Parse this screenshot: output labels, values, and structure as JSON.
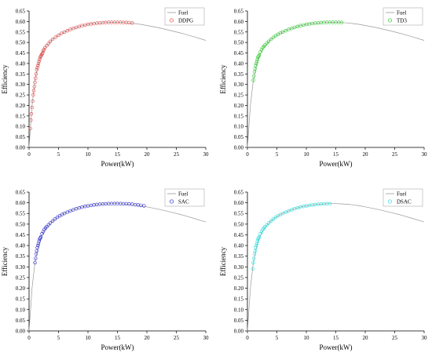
{
  "chart_data": [
    {
      "type": "scatter",
      "xlabel": "Power(kW)",
      "ylabel": "Efficiency",
      "xlim": [
        0,
        30
      ],
      "ylim": [
        0,
        0.65
      ],
      "xticks": [
        "0",
        "5",
        "10",
        "15",
        "20",
        "25",
        "30"
      ],
      "yticks": [
        "0.00",
        "0.05",
        "0.10",
        "0.15",
        "0.20",
        "0.25",
        "0.30",
        "0.35",
        "0.40",
        "0.45",
        "0.50",
        "0.55",
        "0.60",
        "0.65"
      ],
      "legend": [
        "Fuel",
        "DDPG"
      ],
      "legend_position": "top-right",
      "colors": {
        "fuel": "#999999",
        "series": "#e04040"
      },
      "series": [
        {
          "name": "Fuel",
          "kind": "line",
          "x": [
            0,
            0.5,
            1,
            1.5,
            2,
            2.5,
            3,
            4,
            5,
            6,
            7,
            8,
            9,
            10,
            11,
            12,
            13,
            14,
            15,
            16,
            17,
            18,
            19,
            20,
            22,
            24,
            26,
            28,
            30
          ],
          "y": [
            0,
            0.2,
            0.32,
            0.39,
            0.435,
            0.465,
            0.485,
            0.515,
            0.535,
            0.55,
            0.562,
            0.572,
            0.58,
            0.586,
            0.59,
            0.593,
            0.595,
            0.596,
            0.596,
            0.595,
            0.593,
            0.59,
            0.586,
            0.581,
            0.57,
            0.557,
            0.543,
            0.527,
            0.51
          ]
        },
        {
          "name": "DDPG",
          "kind": "scatter",
          "x": [
            0.2,
            0.3,
            0.4,
            0.5,
            0.6,
            0.7,
            0.8,
            0.9,
            1,
            1.1,
            1.2,
            1.3,
            1.4,
            1.5,
            1.6,
            1.7,
            1.8,
            1.9,
            2,
            2.1,
            2.2,
            2.3,
            2.4,
            2.5,
            2.7,
            3,
            3.3,
            3.6,
            4,
            4.5,
            5,
            5.5,
            6,
            6.5,
            7,
            7.5,
            8,
            8.5,
            9,
            9.5,
            10,
            10.5,
            11,
            11.5,
            12,
            12.5,
            13,
            13.5,
            14,
            14.5,
            15,
            15.5,
            16,
            16.5,
            17,
            17.5
          ],
          "y": [
            0.09,
            0.13,
            0.16,
            0.19,
            0.22,
            0.25,
            0.27,
            0.29,
            0.31,
            0.33,
            0.35,
            0.37,
            0.38,
            0.39,
            0.4,
            0.41,
            0.42,
            0.43,
            0.435,
            0.44,
            0.445,
            0.45,
            0.46,
            0.465,
            0.475,
            0.485,
            0.495,
            0.505,
            0.515,
            0.525,
            0.535,
            0.543,
            0.55,
            0.556,
            0.562,
            0.567,
            0.572,
            0.576,
            0.58,
            0.583,
            0.586,
            0.588,
            0.59,
            0.592,
            0.593,
            0.594,
            0.595,
            0.596,
            0.596,
            0.596,
            0.596,
            0.596,
            0.595,
            0.595,
            0.594,
            0.593
          ]
        }
      ]
    },
    {
      "type": "scatter",
      "xlabel": "Power(kW)",
      "ylabel": "Efficiency",
      "xlim": [
        0,
        30
      ],
      "ylim": [
        0,
        0.65
      ],
      "xticks": [
        "0",
        "5",
        "10",
        "15",
        "20",
        "25",
        "30"
      ],
      "yticks": [
        "0.00",
        "0.05",
        "0.10",
        "0.15",
        "0.20",
        "0.25",
        "0.30",
        "0.35",
        "0.40",
        "0.45",
        "0.50",
        "0.55",
        "0.60",
        "0.65"
      ],
      "legend": [
        "Fuel",
        "TD3"
      ],
      "legend_position": "top-right",
      "colors": {
        "fuel": "#999999",
        "series": "#22cc22"
      },
      "series": [
        {
          "name": "Fuel",
          "kind": "line",
          "x": [
            0,
            0.5,
            1,
            1.5,
            2,
            2.5,
            3,
            4,
            5,
            6,
            7,
            8,
            9,
            10,
            11,
            12,
            13,
            14,
            15,
            16,
            17,
            18,
            19,
            20,
            22,
            24,
            26,
            28,
            30
          ],
          "y": [
            0,
            0.2,
            0.32,
            0.39,
            0.435,
            0.465,
            0.485,
            0.515,
            0.535,
            0.55,
            0.562,
            0.572,
            0.58,
            0.586,
            0.59,
            0.593,
            0.595,
            0.596,
            0.596,
            0.595,
            0.593,
            0.59,
            0.586,
            0.581,
            0.57,
            0.557,
            0.543,
            0.527,
            0.51
          ]
        },
        {
          "name": "TD3",
          "kind": "scatter",
          "x": [
            1,
            1.1,
            1.2,
            1.3,
            1.4,
            1.5,
            1.6,
            1.7,
            1.8,
            1.9,
            2,
            2.2,
            2.4,
            2.6,
            2.8,
            3,
            3.3,
            3.6,
            4,
            4.4,
            4.8,
            5.2,
            5.6,
            6,
            6.5,
            7,
            7.5,
            8,
            8.5,
            9,
            9.5,
            10,
            10.5,
            11,
            11.5,
            12,
            12.5,
            13,
            13.5,
            14,
            14.5,
            15,
            15.5,
            16
          ],
          "y": [
            0.32,
            0.34,
            0.36,
            0.375,
            0.39,
            0.4,
            0.41,
            0.42,
            0.43,
            0.435,
            0.44,
            0.455,
            0.465,
            0.475,
            0.482,
            0.488,
            0.497,
            0.505,
            0.515,
            0.524,
            0.532,
            0.539,
            0.545,
            0.55,
            0.556,
            0.562,
            0.567,
            0.572,
            0.576,
            0.58,
            0.583,
            0.586,
            0.588,
            0.59,
            0.592,
            0.593,
            0.594,
            0.595,
            0.596,
            0.596,
            0.596,
            0.596,
            0.596,
            0.595
          ]
        }
      ]
    },
    {
      "type": "scatter",
      "xlabel": "Power(kW)",
      "ylabel": "Efficiency",
      "xlim": [
        0,
        30
      ],
      "ylim": [
        0,
        0.65
      ],
      "xticks": [
        "0",
        "5",
        "10",
        "15",
        "20",
        "25",
        "30"
      ],
      "yticks": [
        "0.00",
        "0.05",
        "0.10",
        "0.15",
        "0.20",
        "0.25",
        "0.30",
        "0.35",
        "0.40",
        "0.45",
        "0.50",
        "0.55",
        "0.60",
        "0.65"
      ],
      "legend": [
        "Fuel",
        "SAC"
      ],
      "legend_position": "top-right",
      "colors": {
        "fuel": "#999999",
        "series": "#2424d0"
      },
      "series": [
        {
          "name": "Fuel",
          "kind": "line",
          "x": [
            0,
            0.5,
            1,
            1.5,
            2,
            2.5,
            3,
            4,
            5,
            6,
            7,
            8,
            9,
            10,
            11,
            12,
            13,
            14,
            15,
            16,
            17,
            18,
            19,
            20,
            22,
            24,
            26,
            28,
            30
          ],
          "y": [
            0,
            0.2,
            0.32,
            0.39,
            0.435,
            0.465,
            0.485,
            0.515,
            0.535,
            0.55,
            0.562,
            0.572,
            0.58,
            0.586,
            0.59,
            0.593,
            0.595,
            0.596,
            0.596,
            0.595,
            0.593,
            0.59,
            0.586,
            0.581,
            0.57,
            0.557,
            0.543,
            0.527,
            0.51
          ]
        },
        {
          "name": "SAC",
          "kind": "scatter",
          "x": [
            1,
            1.1,
            1.2,
            1.3,
            1.4,
            1.5,
            1.6,
            1.7,
            1.8,
            1.9,
            2,
            2.2,
            2.4,
            2.6,
            2.8,
            3,
            3.3,
            3.6,
            4,
            4.4,
            4.8,
            5.2,
            5.6,
            6,
            6.5,
            7,
            7.5,
            8,
            8.5,
            9,
            9.5,
            10,
            10.5,
            11,
            11.5,
            12,
            12.5,
            13,
            13.5,
            14,
            14.5,
            15,
            15.5,
            16,
            16.5,
            17,
            17.5,
            18,
            18.5,
            19,
            19.5
          ],
          "y": [
            0.32,
            0.34,
            0.36,
            0.375,
            0.39,
            0.4,
            0.41,
            0.42,
            0.43,
            0.435,
            0.44,
            0.455,
            0.465,
            0.475,
            0.482,
            0.488,
            0.497,
            0.505,
            0.515,
            0.524,
            0.532,
            0.539,
            0.545,
            0.55,
            0.556,
            0.562,
            0.567,
            0.572,
            0.576,
            0.58,
            0.583,
            0.586,
            0.588,
            0.59,
            0.592,
            0.593,
            0.594,
            0.595,
            0.596,
            0.596,
            0.596,
            0.596,
            0.596,
            0.595,
            0.595,
            0.594,
            0.593,
            0.591,
            0.59,
            0.588,
            0.586
          ]
        }
      ]
    },
    {
      "type": "scatter",
      "xlabel": "Power(kW)",
      "ylabel": "Efficiency",
      "xlim": [
        0,
        30
      ],
      "ylim": [
        0,
        0.65
      ],
      "xticks": [
        "0",
        "5",
        "10",
        "15",
        "20",
        "25",
        "30"
      ],
      "yticks": [
        "0.00",
        "0.05",
        "0.10",
        "0.15",
        "0.20",
        "0.25",
        "0.30",
        "0.35",
        "0.40",
        "0.45",
        "0.50",
        "0.55",
        "0.60",
        "0.65"
      ],
      "legend": [
        "Fuel",
        "DSAC"
      ],
      "legend_position": "top-right",
      "colors": {
        "fuel": "#999999",
        "series": "#1ee0e0"
      },
      "series": [
        {
          "name": "Fuel",
          "kind": "line",
          "x": [
            0,
            0.5,
            1,
            1.5,
            2,
            2.5,
            3,
            4,
            5,
            6,
            7,
            8,
            9,
            10,
            11,
            12,
            13,
            14,
            15,
            16,
            17,
            18,
            19,
            20,
            22,
            24,
            26,
            28,
            30
          ],
          "y": [
            0,
            0.2,
            0.32,
            0.39,
            0.435,
            0.465,
            0.485,
            0.515,
            0.535,
            0.55,
            0.562,
            0.572,
            0.58,
            0.586,
            0.59,
            0.593,
            0.595,
            0.596,
            0.596,
            0.595,
            0.593,
            0.59,
            0.586,
            0.581,
            0.57,
            0.557,
            0.543,
            0.527,
            0.51
          ]
        },
        {
          "name": "DSAC",
          "kind": "scatter",
          "x": [
            0.9,
            1,
            1.1,
            1.2,
            1.3,
            1.4,
            1.5,
            1.6,
            1.7,
            1.8,
            1.9,
            2,
            2.2,
            2.4,
            2.6,
            2.8,
            3,
            3.3,
            3.6,
            4,
            4.4,
            4.8,
            5.2,
            5.6,
            6,
            6.5,
            7,
            7.5,
            8,
            8.5,
            9,
            9.5,
            10,
            10.5,
            11,
            11.5,
            12,
            12.5,
            13,
            13.5,
            14
          ],
          "y": [
            0.29,
            0.32,
            0.34,
            0.36,
            0.375,
            0.39,
            0.4,
            0.41,
            0.42,
            0.43,
            0.435,
            0.44,
            0.455,
            0.465,
            0.475,
            0.482,
            0.488,
            0.497,
            0.505,
            0.515,
            0.524,
            0.532,
            0.539,
            0.545,
            0.55,
            0.556,
            0.562,
            0.567,
            0.572,
            0.576,
            0.58,
            0.583,
            0.586,
            0.588,
            0.59,
            0.592,
            0.593,
            0.594,
            0.595,
            0.596,
            0.596
          ]
        }
      ]
    }
  ]
}
